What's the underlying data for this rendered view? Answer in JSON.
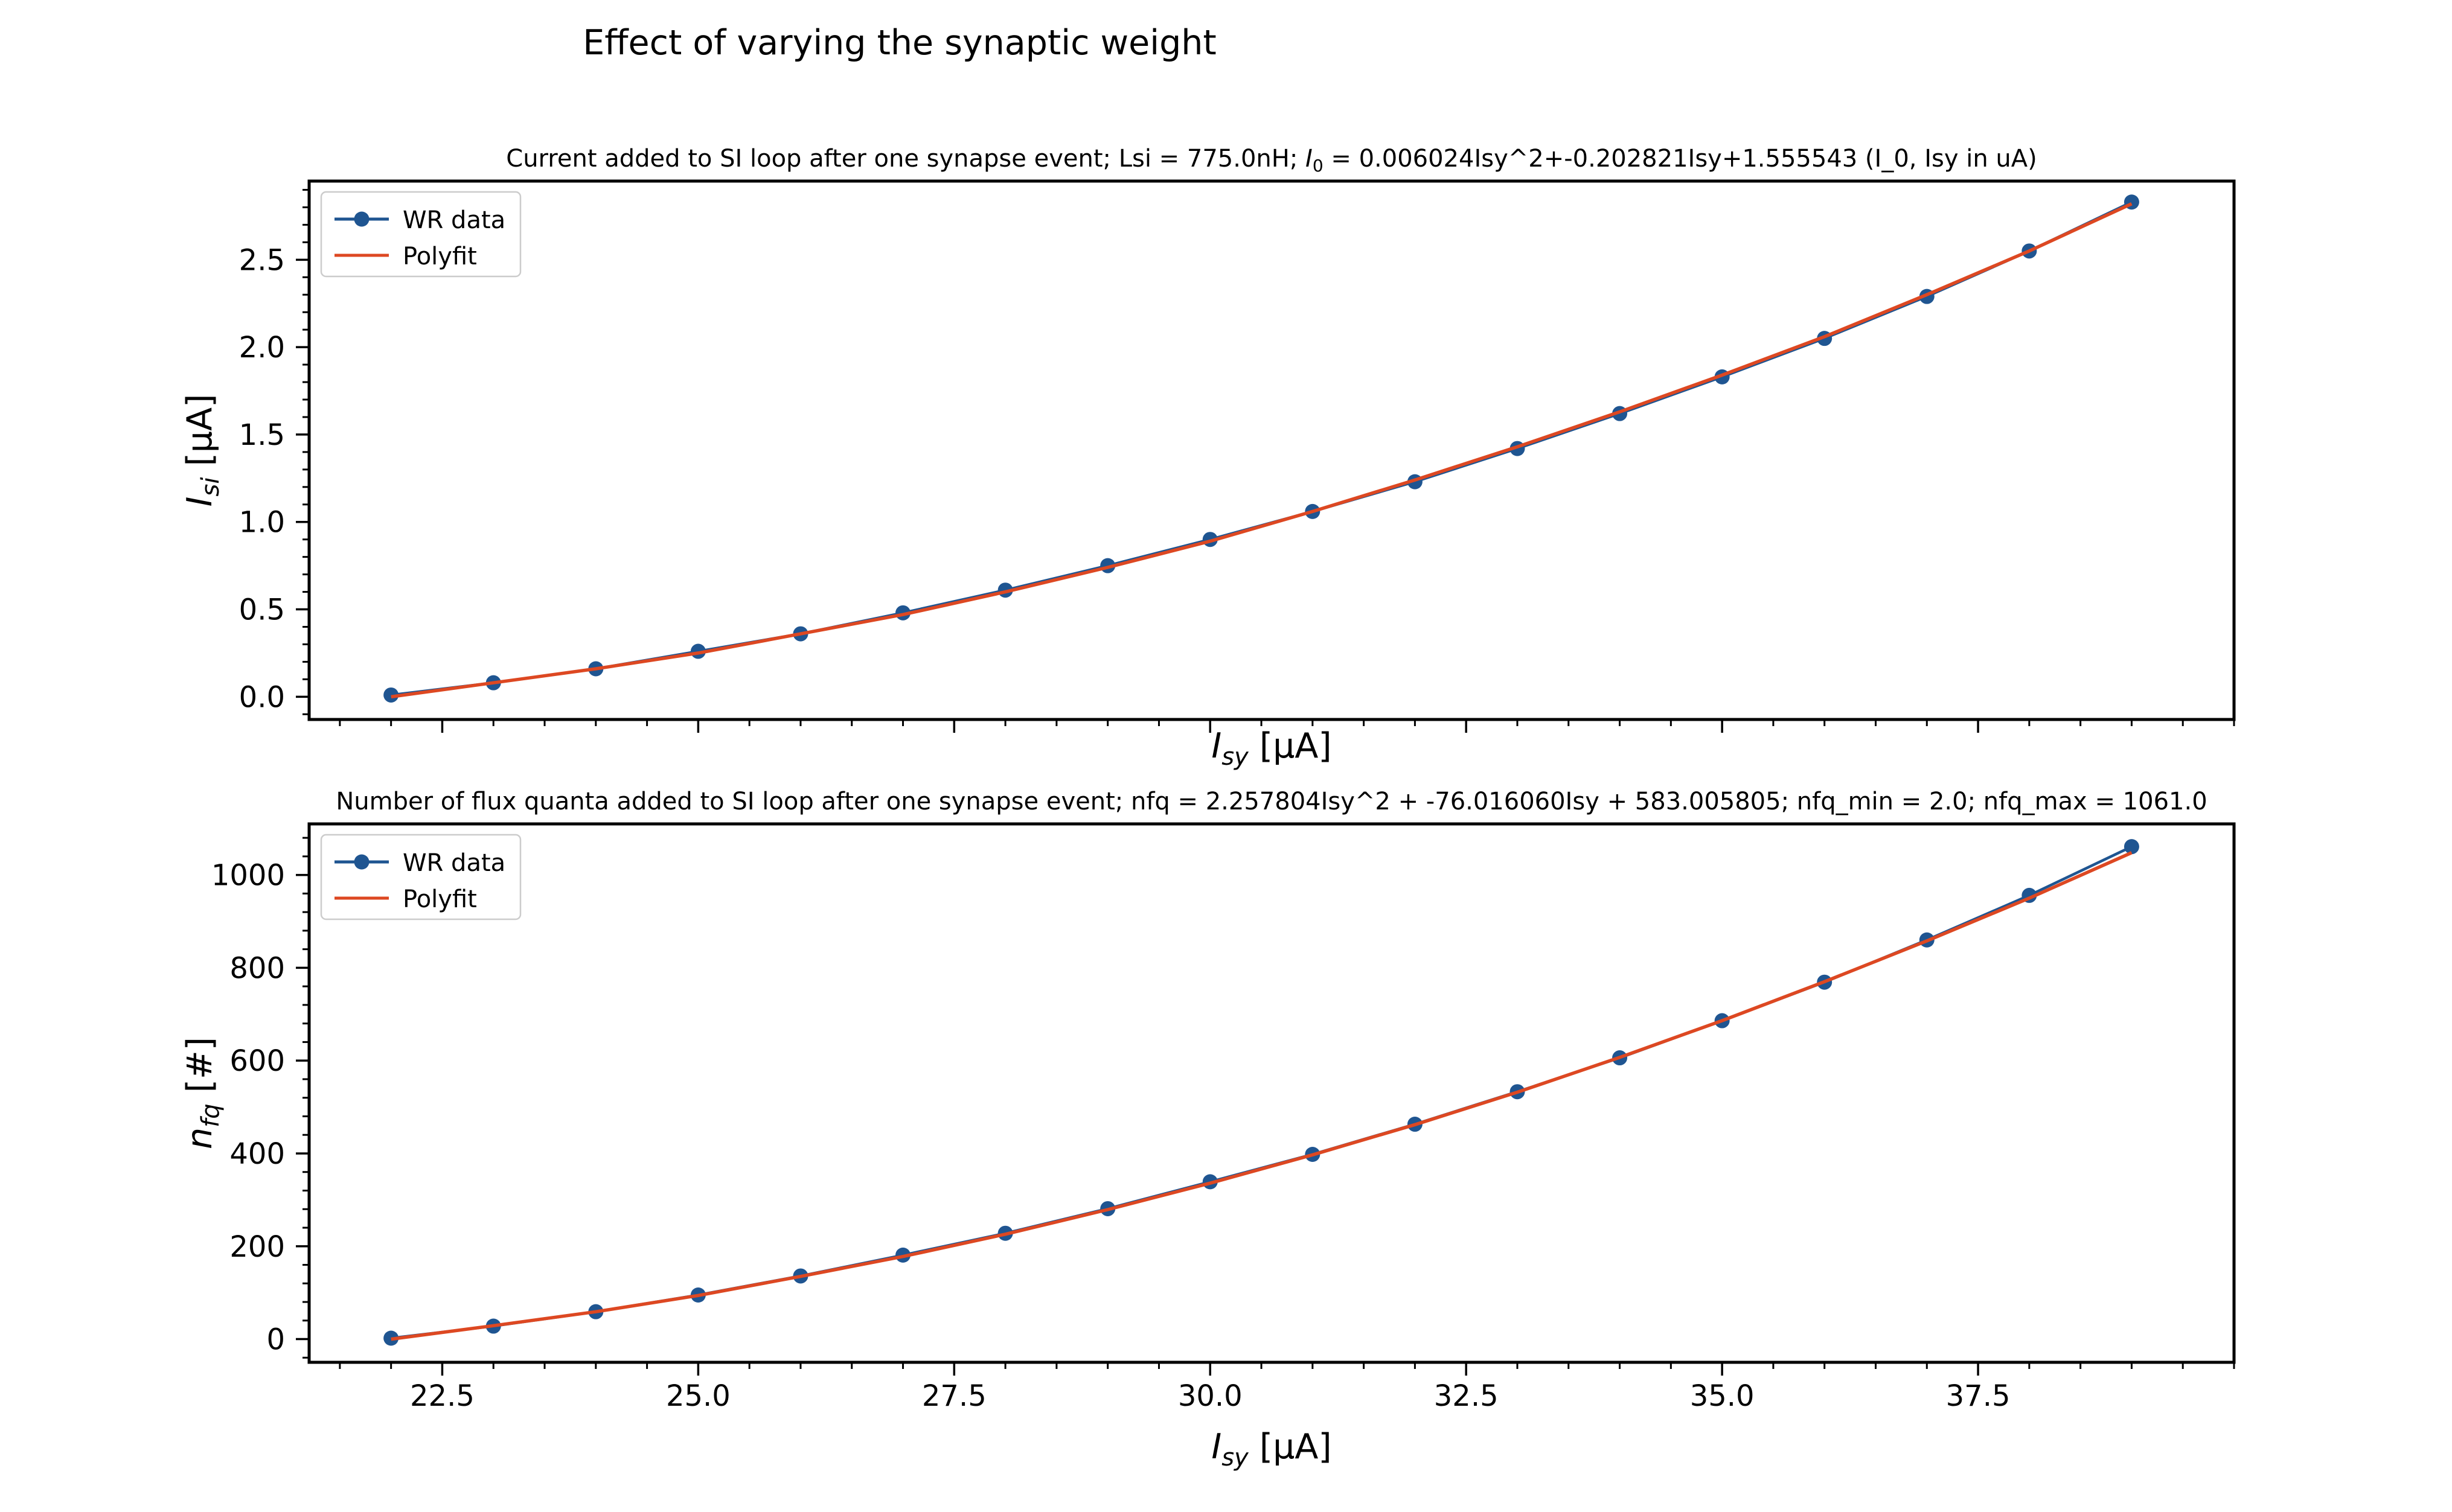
{
  "figure": {
    "suptitle": "Effect of varying the synaptic weight"
  },
  "colors": {
    "data": "#1f5591",
    "fit": "#dd4822",
    "axes": "#000000",
    "background": "#ffffff"
  },
  "chart_data": [
    {
      "type": "line",
      "title": "Current added to SI loop after one synapse event; Lsi = 775.0nH; I_0 = 0.006024Isy^2+-0.202821Isy+1.555543 (I_0, Isy in uA)",
      "xlabel": "I_sy [μA]",
      "ylabel": "I_si [μA]",
      "xlim": [
        21.2,
        40.0
      ],
      "ylim": [
        -0.13,
        2.95
      ],
      "xticks": [
        22.5,
        25.0,
        27.5,
        30.0,
        32.5,
        35.0,
        37.5
      ],
      "xtick_labels_visible": false,
      "yticks": [
        0.0,
        0.5,
        1.0,
        1.5,
        2.0,
        2.5
      ],
      "ytick_labels": [
        "0.0",
        "0.5",
        "1.0",
        "1.5",
        "2.0",
        "2.5"
      ],
      "legend_placement": "upper-left",
      "grid": false,
      "x": [
        22,
        23,
        24,
        25,
        26,
        27,
        28,
        29,
        30,
        31,
        32,
        33,
        34,
        35,
        36,
        37,
        38,
        39
      ],
      "series": [
        {
          "name": "WR data",
          "style": "line-marker",
          "color": "#1f5591",
          "values": [
            0.01,
            0.08,
            0.16,
            0.26,
            0.36,
            0.48,
            0.61,
            0.75,
            0.9,
            1.06,
            1.23,
            1.42,
            1.62,
            1.83,
            2.05,
            2.29,
            2.55,
            2.83
          ]
        },
        {
          "name": "Polyfit",
          "style": "line",
          "color": "#dd4822",
          "values": [
            0.0,
            0.08,
            0.16,
            0.25,
            0.36,
            0.47,
            0.6,
            0.74,
            0.89,
            1.06,
            1.24,
            1.43,
            1.63,
            1.84,
            2.06,
            2.3,
            2.55,
            2.82
          ]
        }
      ]
    },
    {
      "type": "line",
      "title": "Number of flux quanta added to SI loop after one synapse event; nfq = 2.257804Isy^2 + -76.016060Isy + 583.005805; nfq_min = 2.0; nfq_max = 1061.0",
      "xlabel": "I_sy [μA]",
      "ylabel": "n_fq [#]",
      "xlim": [
        21.2,
        40.0
      ],
      "ylim": [
        -50,
        1110
      ],
      "xticks": [
        22.5,
        25.0,
        27.5,
        30.0,
        32.5,
        35.0,
        37.5
      ],
      "xtick_labels": [
        "22.5",
        "25.0",
        "27.5",
        "30.0",
        "32.5",
        "35.0",
        "37.5"
      ],
      "yticks": [
        0,
        200,
        400,
        600,
        800,
        1000
      ],
      "ytick_labels": [
        "0",
        "200",
        "400",
        "600",
        "800",
        "1000"
      ],
      "legend_placement": "upper-left",
      "grid": false,
      "x": [
        22,
        23,
        24,
        25,
        26,
        27,
        28,
        29,
        30,
        31,
        32,
        33,
        34,
        35,
        36,
        37,
        38,
        39
      ],
      "series": [
        {
          "name": "WR data",
          "style": "line-marker",
          "color": "#1f5591",
          "values": [
            2,
            28,
            59,
            95,
            136,
            181,
            228,
            281,
            339,
            398,
            463,
            533,
            606,
            686,
            769,
            860,
            956,
            1061
          ]
        },
        {
          "name": "Polyfit",
          "style": "line",
          "color": "#dd4822",
          "values": [
            0,
            29,
            59,
            94,
            135,
            178,
            226,
            279,
            336,
            397,
            462,
            532,
            607,
            686,
            770,
            858,
            950,
            1048
          ]
        }
      ]
    }
  ]
}
